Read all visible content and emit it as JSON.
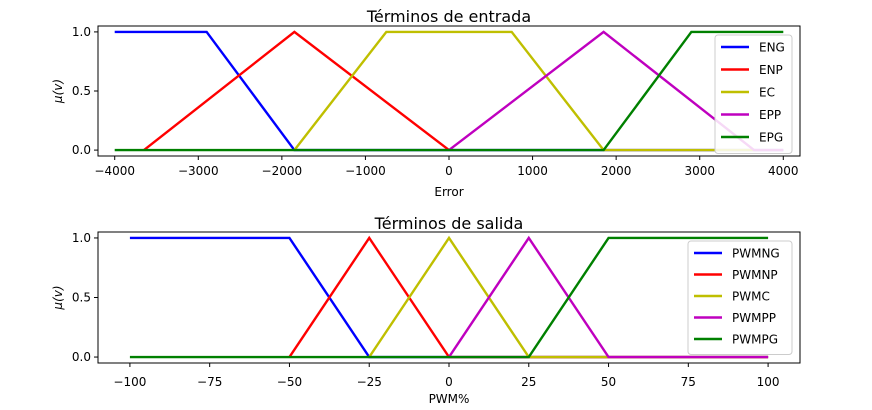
{
  "chart_data": [
    {
      "type": "line",
      "title": "Términos de entrada",
      "xlabel": "Error",
      "ylabel": "μ(v)",
      "xlim": [
        -4200,
        4200
      ],
      "ylim": [
        -0.05,
        1.05
      ],
      "xticks": [
        -4000,
        -3000,
        -2000,
        -1000,
        0,
        1000,
        2000,
        3000,
        4000
      ],
      "xtick_labels": [
        "−4000",
        "−3000",
        "−2000",
        "−1000",
        "0",
        "1000",
        "2000",
        "3000",
        "4000"
      ],
      "yticks": [
        0.0,
        0.5,
        1.0
      ],
      "ytick_labels": [
        "0.0",
        "0.5",
        "1.0"
      ],
      "legend_position": "top-right",
      "grid": false,
      "series": [
        {
          "name": "ENG",
          "color": "#0000ff",
          "x": [
            -4000,
            -2900,
            -1850,
            4000
          ],
          "y": [
            1,
            1,
            0,
            0
          ]
        },
        {
          "name": "ENP",
          "color": "#ff0000",
          "x": [
            -3650,
            -1850,
            0
          ],
          "y": [
            0,
            1,
            0
          ]
        },
        {
          "name": "EC",
          "color": "#bfbf00",
          "x": [
            -1850,
            -750,
            750,
            1850,
            3650
          ],
          "y": [
            0,
            1,
            1,
            0,
            0
          ]
        },
        {
          "name": "EPP",
          "color": "#bf00bf",
          "x": [
            0,
            1850,
            3650,
            4000
          ],
          "y": [
            0,
            1,
            0,
            0
          ]
        },
        {
          "name": "EPG",
          "color": "#008000",
          "x": [
            -4000,
            1850,
            2900,
            4000
          ],
          "y": [
            0,
            0,
            1,
            1
          ]
        }
      ]
    },
    {
      "type": "line",
      "title": "Términos de salida",
      "xlabel": "PWM%",
      "ylabel": "μ(v)",
      "xlim": [
        -110,
        110
      ],
      "ylim": [
        -0.05,
        1.05
      ],
      "xticks": [
        -100,
        -75,
        -50,
        -25,
        0,
        25,
        50,
        75,
        100
      ],
      "xtick_labels": [
        "−100",
        "−75",
        "−50",
        "−25",
        "0",
        "25",
        "50",
        "75",
        "100"
      ],
      "yticks": [
        0.0,
        0.5,
        1.0
      ],
      "ytick_labels": [
        "0.0",
        "0.5",
        "1.0"
      ],
      "legend_position": "top-right",
      "grid": false,
      "series": [
        {
          "name": "PWMNG",
          "color": "#0000ff",
          "x": [
            -100,
            -50,
            -25,
            100
          ],
          "y": [
            1,
            1,
            0,
            0
          ]
        },
        {
          "name": "PWMNP",
          "color": "#ff0000",
          "x": [
            -50,
            -25,
            0,
            100
          ],
          "y": [
            0,
            1,
            0,
            0
          ]
        },
        {
          "name": "PWMC",
          "color": "#bfbf00",
          "x": [
            -25,
            0,
            25,
            100
          ],
          "y": [
            0,
            1,
            0,
            0
          ]
        },
        {
          "name": "PWMPP",
          "color": "#bf00bf",
          "x": [
            0,
            25,
            50,
            100
          ],
          "y": [
            0,
            1,
            0,
            0
          ]
        },
        {
          "name": "PWMPG",
          "color": "#008000",
          "x": [
            -100,
            25,
            50,
            100
          ],
          "y": [
            0,
            0,
            1,
            1
          ]
        }
      ]
    }
  ]
}
